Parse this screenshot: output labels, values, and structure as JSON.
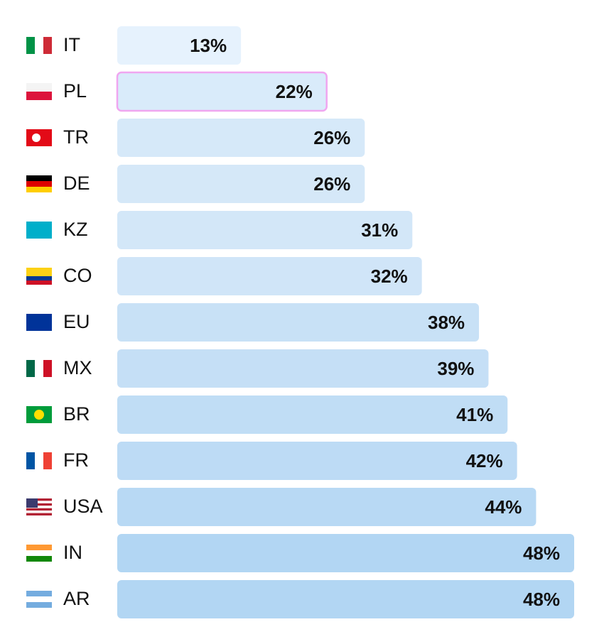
{
  "chart_data": {
    "type": "bar",
    "orientation": "horizontal",
    "categories": [
      "IT",
      "PL",
      "TR",
      "DE",
      "KZ",
      "CO",
      "EU",
      "MX",
      "BR",
      "FR",
      "USA",
      "IN",
      "AR"
    ],
    "values": [
      13,
      22,
      26,
      26,
      31,
      32,
      38,
      39,
      41,
      42,
      44,
      48,
      48
    ],
    "value_labels": [
      "13%",
      "22%",
      "26%",
      "26%",
      "31%",
      "32%",
      "38%",
      "39%",
      "41%",
      "42%",
      "44%",
      "48%",
      "48%"
    ],
    "colors": [
      "#e6f2fd",
      "#d9ebfa",
      "#d6e9f9",
      "#d5e8f8",
      "#d3e7f8",
      "#d0e5f8",
      "#c8e1f6",
      "#c5dff6",
      "#c0ddf5",
      "#bddbf5",
      "#b8d9f4",
      "#b2d6f3",
      "#b2d6f3"
    ],
    "highlight": 1,
    "highlight_color": "#f0a6f0"
  }
}
